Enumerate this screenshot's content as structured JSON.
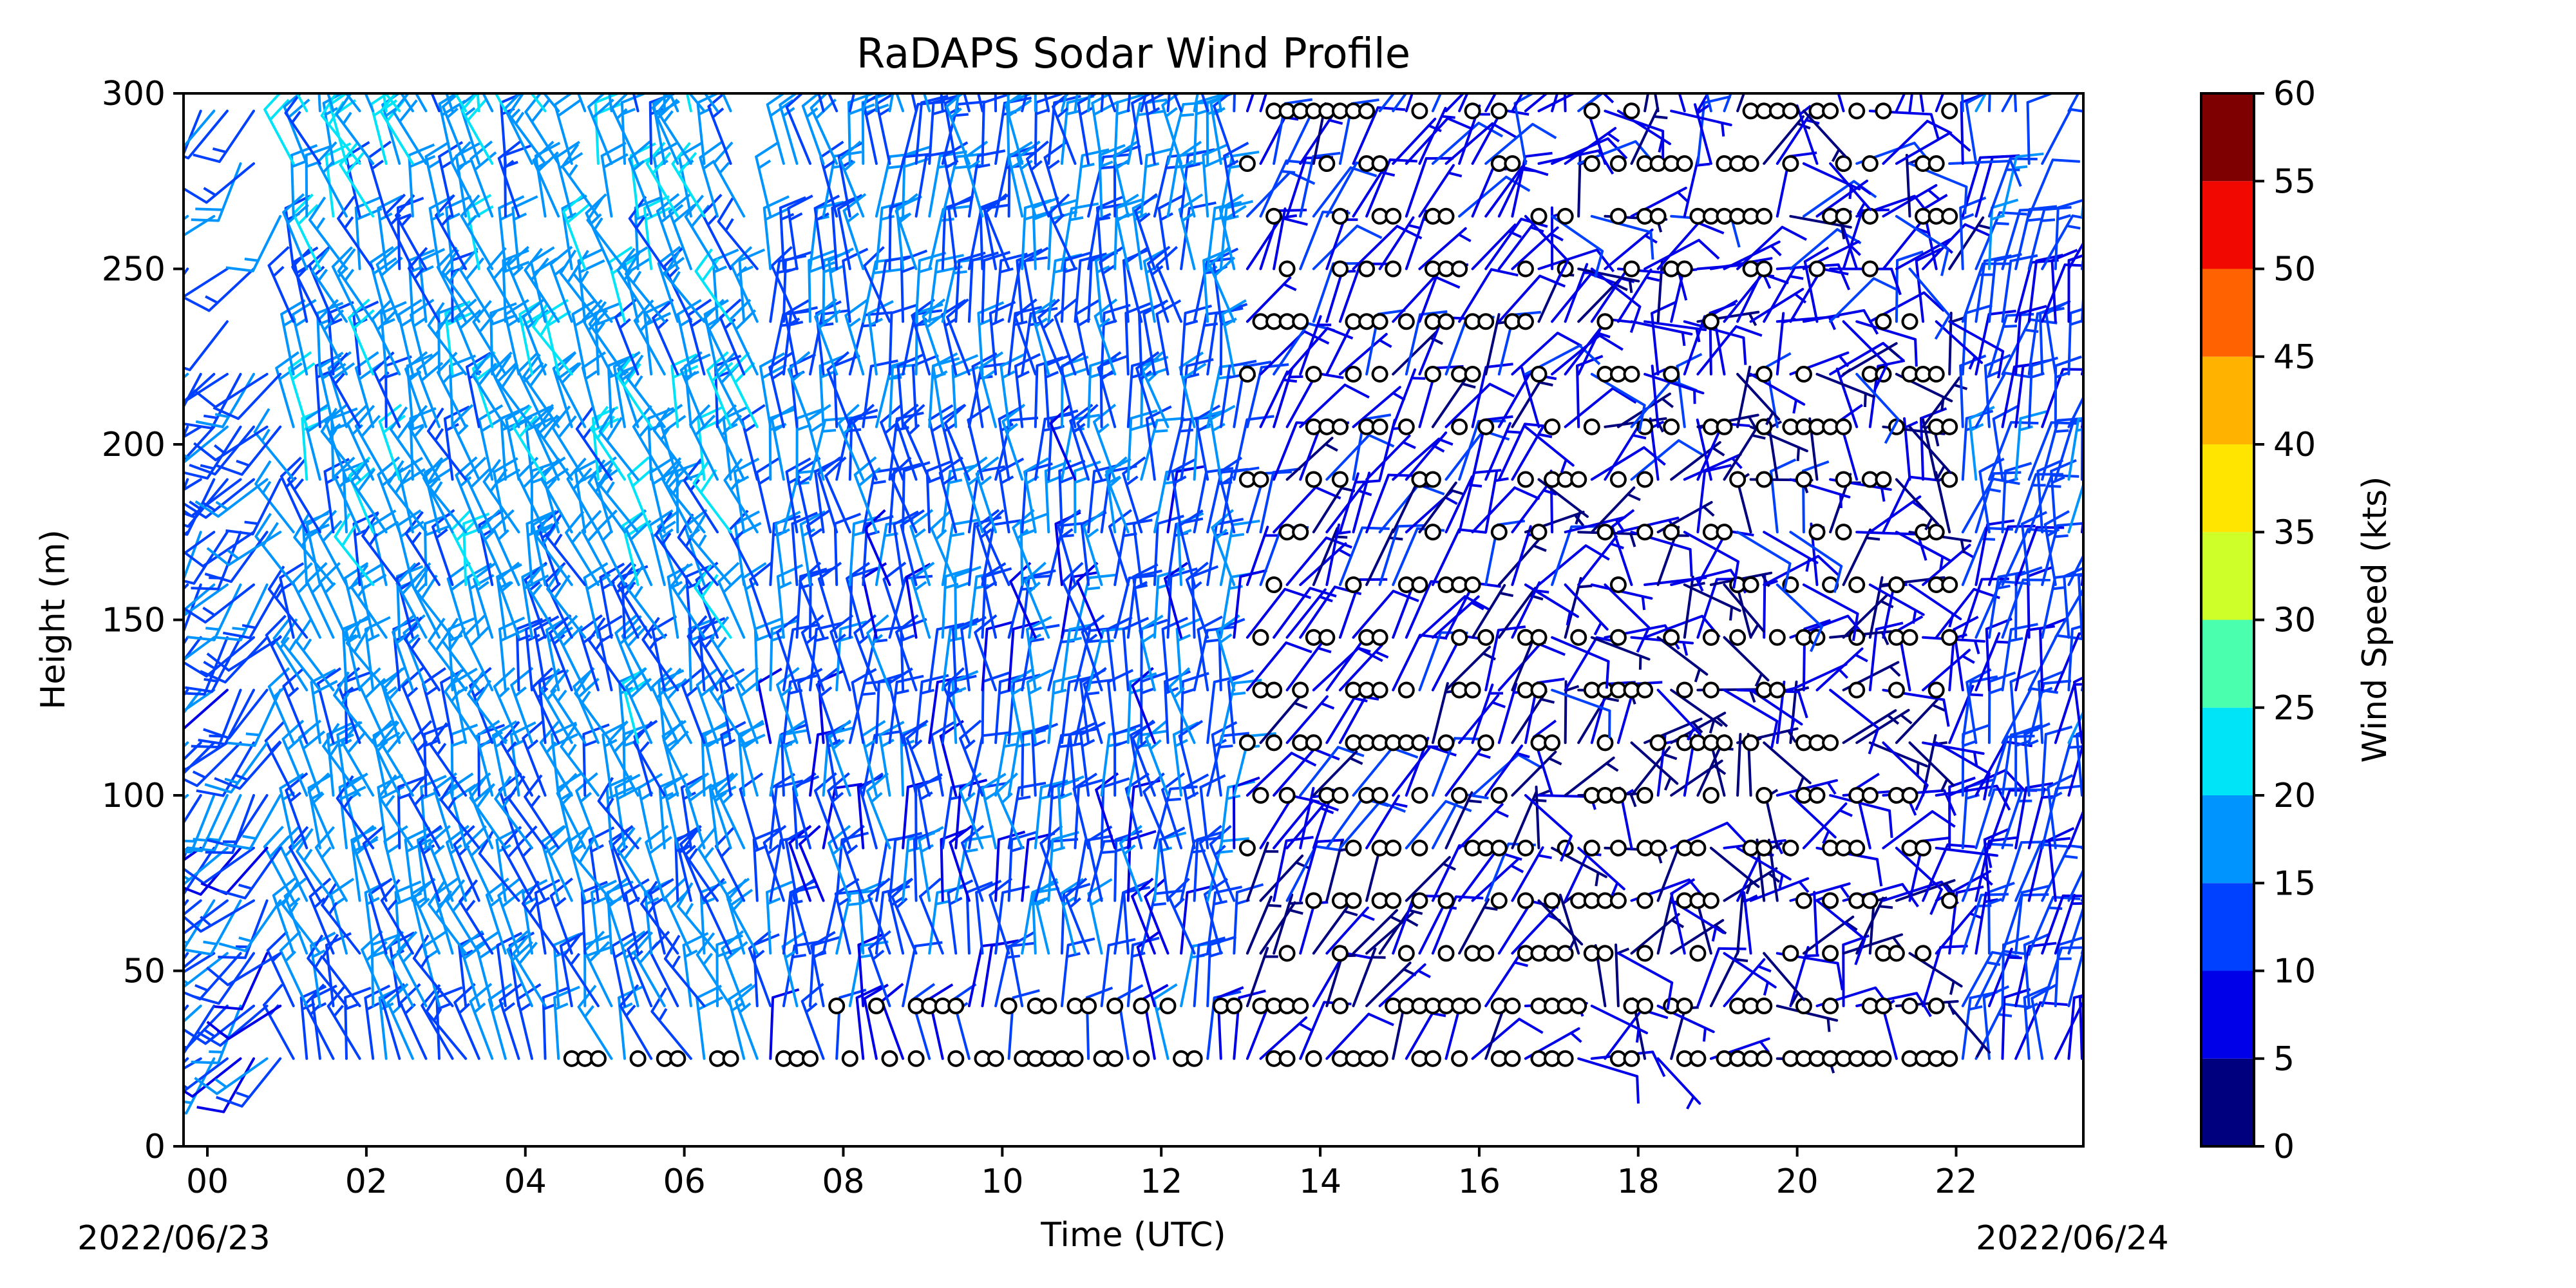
{
  "chart_data": {
    "type": "wind-barb",
    "title": "RaDAPS Sodar Wind Profile",
    "xlabel": "Time (UTC)",
    "ylabel": "Height (m)",
    "x_range_hours": [
      -0.3,
      23.6
    ],
    "y_range_m": [
      0,
      300
    ],
    "x_tick_labels": [
      "00",
      "02",
      "04",
      "06",
      "08",
      "10",
      "12",
      "14",
      "16",
      "18",
      "20",
      "22"
    ],
    "x_tick_hours": [
      0,
      2,
      4,
      6,
      8,
      10,
      12,
      14,
      16,
      18,
      20,
      22
    ],
    "y_tick_labels": [
      "0",
      "50",
      "100",
      "150",
      "200",
      "250",
      "300"
    ],
    "y_tick_values": [
      0,
      50,
      100,
      150,
      200,
      250,
      300
    ],
    "start_date": "2022/06/23",
    "end_date": "2022/06/24",
    "sampling_interval_min": 10,
    "heights_m": [
      25,
      40,
      55,
      70,
      85,
      100,
      115,
      130,
      145,
      160,
      175,
      190,
      205,
      220,
      235,
      250,
      265,
      280,
      295
    ],
    "colorbar": {
      "label": "Wind Speed (kts)",
      "ticks": [
        "0",
        "5",
        "10",
        "15",
        "20",
        "25",
        "30",
        "35",
        "40",
        "45",
        "50",
        "55",
        "60"
      ],
      "tick_values": [
        0,
        5,
        10,
        15,
        20,
        25,
        30,
        35,
        40,
        45,
        50,
        55,
        60
      ],
      "range": [
        0,
        60
      ],
      "colors": [
        "#00007f",
        "#0000e8",
        "#0040ff",
        "#0094ff",
        "#00e4f8",
        "#4affad",
        "#94ff63",
        "#ceff29",
        "#ffe500",
        "#ffb200",
        "#ff6200",
        "#f10800",
        "#7f0000"
      ]
    },
    "regimes": [
      {
        "from_h": -0.3,
        "to_h": 1.0,
        "direction_deg": 220,
        "speed_kts": 12,
        "description": "southwesterly"
      },
      {
        "from_h": 1.0,
        "to_h": 7.0,
        "direction_deg": 340,
        "speed_kts": 15,
        "description": "north-northwesterly"
      },
      {
        "from_h": 7.0,
        "to_h": 13.0,
        "direction_deg": 355,
        "speed_kts": 12,
        "description": "northerly"
      },
      {
        "from_h": 13.0,
        "to_h": 16.5,
        "direction_deg": 30,
        "speed_kts": 6,
        "description": "light northeasterly / calm"
      },
      {
        "from_h": 16.5,
        "to_h": 22.0,
        "direction_deg": 60,
        "speed_kts": 5,
        "description": "light and variable / calm"
      },
      {
        "from_h": 22.0,
        "to_h": 23.6,
        "direction_deg": 10,
        "speed_kts": 10,
        "description": "northerly"
      }
    ]
  }
}
